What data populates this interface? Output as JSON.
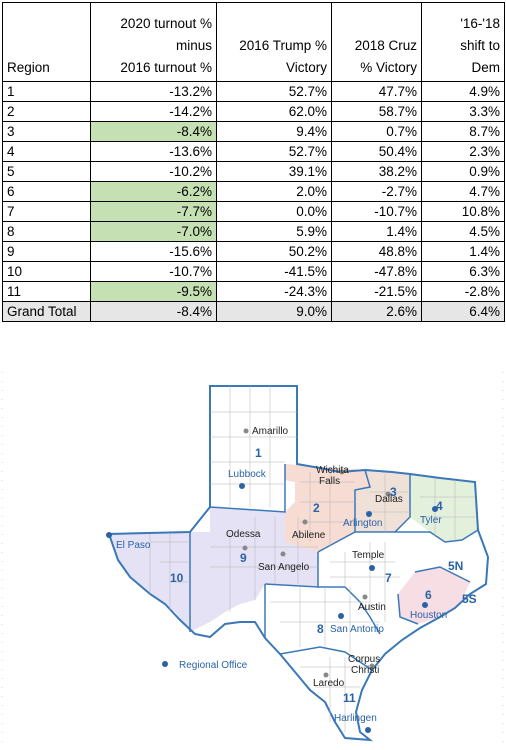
{
  "table": {
    "headers": {
      "region": "Region",
      "turnout_line1": "2020 turnout %",
      "turnout_line2": "minus",
      "turnout_line3": "2016 turnout %",
      "trump_line1": "2016 Trump %",
      "trump_line2": "Victory",
      "cruz_line1": "2018 Cruz",
      "cruz_line2": "% Victory",
      "shift_line1": "'16-'18",
      "shift_line2": "shift to",
      "shift_line3": "Dem"
    },
    "rows": [
      {
        "region": "1",
        "turnout": "-13.2%",
        "trump": "52.7%",
        "cruz": "47.7%",
        "shift": "4.9%",
        "highlight": false
      },
      {
        "region": "2",
        "turnout": "-14.2%",
        "trump": "62.0%",
        "cruz": "58.7%",
        "shift": "3.3%",
        "highlight": false
      },
      {
        "region": "3",
        "turnout": "-8.4%",
        "trump": "9.4%",
        "cruz": "0.7%",
        "shift": "8.7%",
        "highlight": true
      },
      {
        "region": "4",
        "turnout": "-13.6%",
        "trump": "52.7%",
        "cruz": "50.4%",
        "shift": "2.3%",
        "highlight": false
      },
      {
        "region": "5",
        "turnout": "-10.2%",
        "trump": "39.1%",
        "cruz": "38.2%",
        "shift": "0.9%",
        "highlight": false
      },
      {
        "region": "6",
        "turnout": "-6.2%",
        "trump": "2.0%",
        "cruz": "-2.7%",
        "shift": "4.7%",
        "highlight": true
      },
      {
        "region": "7",
        "turnout": "-7.7%",
        "trump": "0.0%",
        "cruz": "-10.7%",
        "shift": "10.8%",
        "highlight": true
      },
      {
        "region": "8",
        "turnout": "-7.0%",
        "trump": "5.9%",
        "cruz": "1.4%",
        "shift": "4.5%",
        "highlight": true
      },
      {
        "region": "9",
        "turnout": "-15.6%",
        "trump": "50.2%",
        "cruz": "48.8%",
        "shift": "1.4%",
        "highlight": false
      },
      {
        "region": "10",
        "turnout": "-10.7%",
        "trump": "-41.5%",
        "cruz": "-47.8%",
        "shift": "6.3%",
        "highlight": false
      },
      {
        "region": "11",
        "turnout": "-9.5%",
        "trump": "-24.3%",
        "cruz": "-21.5%",
        "shift": "-2.8%",
        "highlight": true
      }
    ],
    "total": {
      "region": "Grand Total",
      "turnout": "-8.4%",
      "trump": "9.0%",
      "cruz": "2.6%",
      "shift": "6.4%"
    },
    "highlight_color": "#c5e0b3",
    "total_bg": "#e7e6e6"
  },
  "map": {
    "cities": {
      "amarillo": "Amarillo",
      "lubbock": "Lubbock",
      "wichita": "Wichita",
      "falls": "Falls",
      "dallas": "Dallas",
      "arlington": "Arlington",
      "tyler": "Tyler",
      "odessa": "Odessa",
      "abilene": "Abilene",
      "el_paso": "El Paso",
      "san_angelo": "San Angelo",
      "temple": "Temple",
      "austin": "Austin",
      "houston": "Houston",
      "san_antonio": "San Antonio",
      "corpus": "Corpus",
      "christi": "Christi",
      "laredo": "Laredo",
      "harlingen": "Harlingen"
    },
    "region_labels": {
      "r1": "1",
      "r2": "2",
      "r3": "3",
      "r4": "4",
      "r5n": "5N",
      "r5s": "5S",
      "r6": "6",
      "r7": "7",
      "r8": "8",
      "r9": "9",
      "r10": "10",
      "r11": "11"
    },
    "legend": "Regional Office",
    "colors": {
      "border": "#3b78b8",
      "office": "#2a62a8",
      "region2": "#f6dcd3",
      "region3": "#efe0d8",
      "region4": "#e3f0dc",
      "region6": "#f7dde4",
      "region9": "#e4e2f4",
      "region10": "#e4e2f4"
    }
  }
}
